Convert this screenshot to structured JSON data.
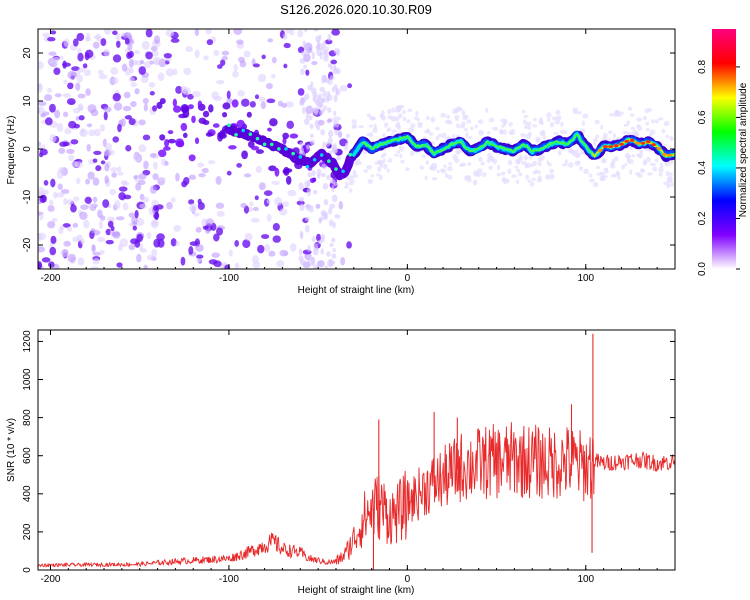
{
  "title": "S126.2026.020.10.30.R09",
  "chart_data": [
    {
      "type": "heatmap",
      "name": "spectrogram",
      "xlabel": "Height of straight line (km)",
      "ylabel": "Frequency (Hz)",
      "xlim": [
        -207,
        150
      ],
      "ylim": [
        -25,
        25
      ],
      "xticks": [
        -200,
        -100,
        0,
        100
      ],
      "yticks": [
        -20,
        -10,
        0,
        10,
        20
      ],
      "colorbar": {
        "label": "Normalized spectral amplitude",
        "range": [
          0,
          0.95
        ],
        "ticks": [
          0.0,
          0.2,
          0.4,
          0.6,
          0.8
        ],
        "colors": [
          "#ffffff",
          "#8000ff",
          "#0000ff",
          "#00ffff",
          "#00ff00",
          "#ffff00",
          "#ff0000",
          "#ff0080"
        ]
      },
      "ridge": {
        "x": [
          -100,
          -90,
          -80,
          -70,
          -62,
          -55,
          -48,
          -42,
          -38,
          -35,
          -32,
          -28,
          -25,
          -20,
          -15,
          -10,
          -5,
          0,
          5,
          10,
          15,
          20,
          25,
          30,
          35,
          40,
          45,
          50,
          55,
          60,
          65,
          70,
          75,
          80,
          85,
          90,
          95,
          100,
          105,
          110,
          115,
          120,
          125,
          130,
          135,
          140,
          145,
          150
        ],
        "freq": [
          4,
          3,
          1.5,
          0,
          -2,
          -3,
          -1,
          -3,
          -5.5,
          -5,
          -2,
          0,
          1.5,
          0,
          1,
          1.5,
          2,
          2.5,
          0.5,
          1,
          -1,
          0,
          1,
          1.5,
          -0.5,
          0,
          1.5,
          0.5,
          0,
          -0.5,
          1,
          -0.5,
          0,
          1,
          1.5,
          1,
          3,
          0.5,
          -1.5,
          0.5,
          0.5,
          1,
          2,
          1,
          1.5,
          0.5,
          -1.5,
          -1
        ]
      }
    },
    {
      "type": "line",
      "name": "snr",
      "xlabel": "Height of straight line (km)",
      "ylabel": "SNR (10 * v/v)",
      "xlim": [
        -207,
        150
      ],
      "ylim": [
        0,
        1260
      ],
      "xticks": [
        -200,
        -100,
        0,
        100
      ],
      "yticks": [
        0,
        200,
        400,
        600,
        800,
        1000,
        1200
      ],
      "color": "#e8292a",
      "envelope": {
        "x": [
          -207,
          -150,
          -130,
          -100,
          -90,
          -80,
          -75,
          -70,
          -60,
          -55,
          -45,
          -40,
          -35,
          -30,
          -25,
          -20,
          -15,
          -10,
          -5,
          0,
          10,
          20,
          30,
          40,
          50,
          60,
          70,
          80,
          90,
          100,
          103,
          105,
          106,
          110,
          120,
          130,
          140,
          150
        ],
        "y": [
          25,
          30,
          45,
          60,
          90,
          130,
          150,
          110,
          90,
          60,
          40,
          45,
          80,
          160,
          260,
          320,
          340,
          280,
          300,
          350,
          430,
          480,
          540,
          560,
          570,
          580,
          570,
          560,
          570,
          540,
          560,
          580,
          570,
          560,
          570,
          580,
          560,
          570
        ]
      },
      "spikes": [
        {
          "x": -16,
          "y": 790
        },
        {
          "x": 15,
          "y": 830
        },
        {
          "x": 28,
          "y": 800
        },
        {
          "x": 92,
          "y": 870
        },
        {
          "x": 104,
          "y": 1240
        },
        {
          "x": 103.5,
          "y": 90
        },
        {
          "x": -19,
          "y": 0
        }
      ]
    }
  ]
}
